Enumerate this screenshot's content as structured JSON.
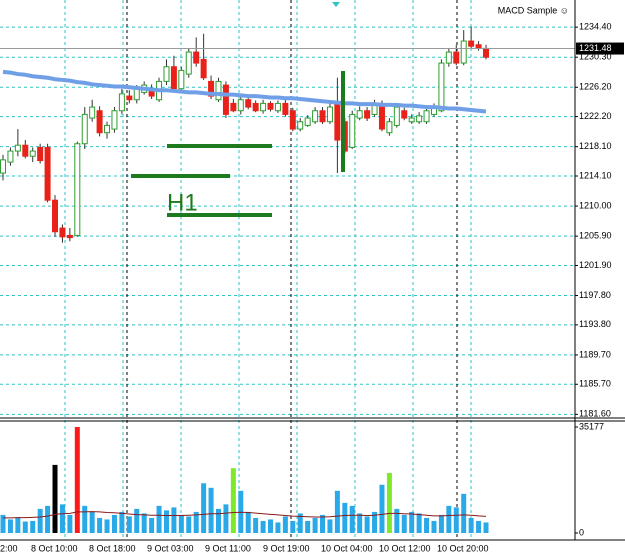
{
  "chart_data": {
    "type": "candlestick",
    "title": "MACD Sample ☺",
    "annotation": "H1",
    "open": [
      1214.5,
      1216,
      1217.5,
      1218.3,
      1216.8,
      1218,
      1218,
      1210.8,
      1207,
      1206,
      1206,
      1218.5,
      1222,
      1223,
      1220,
      1220.5,
      1223,
      1225,
      1224.5,
      1225.5,
      1226,
      1224.5,
      1227,
      1229,
      1226,
      1228,
      1231,
      1230,
      1227,
      1224.5,
      1226.5,
      1224,
      1223,
      1224.5,
      1224,
      1223,
      1224,
      1223,
      1224,
      1223,
      1220.5,
      1221,
      1221.5,
      1223,
      1221.5,
      1224,
      1221.5,
      1218,
      1222,
      1223,
      1222.5,
      1224,
      1220,
      1221,
      1223,
      1221.5,
      1221.5,
      1221.5,
      1222.5,
      1223,
      1229.5,
      1231,
      1229.5,
      1232.5,
      1232,
      1231.5
    ],
    "high": [
      1217,
      1218,
      1220.5,
      1219,
      1218,
      1218.5,
      1218.5,
      1211.5,
      1207.5,
      1207,
      1218.8,
      1223.5,
      1224.5,
      1223.6,
      1221.5,
      1223.5,
      1226,
      1225.8,
      1226.5,
      1227,
      1226.6,
      1227.5,
      1230,
      1230.5,
      1229,
      1231.5,
      1233,
      1233.5,
      1227.8,
      1227.5,
      1227,
      1224.6,
      1225,
      1225,
      1224.4,
      1224.5,
      1224.3,
      1224.4,
      1224.5,
      1223.4,
      1222,
      1222.4,
      1223.5,
      1223.5,
      1224,
      1227.5,
      1222,
      1223,
      1223.6,
      1223.5,
      1224.5,
      1224.4,
      1222,
      1224,
      1223.4,
      1222.5,
      1222.8,
      1223.5,
      1224,
      1230,
      1231.5,
      1232,
      1234,
      1234.5,
      1232.5,
      1232
    ],
    "low": [
      1213.5,
      1215.5,
      1216.8,
      1216.5,
      1216,
      1215.8,
      1210.5,
      1205.8,
      1205,
      1205.2,
      1205.8,
      1217.8,
      1221.5,
      1219.5,
      1219.2,
      1220,
      1222.5,
      1224,
      1224,
      1225.2,
      1224.6,
      1224.2,
      1226.5,
      1225.8,
      1225.5,
      1227.5,
      1229,
      1227.2,
      1224.6,
      1224.2,
      1222,
      1222.8,
      1222.5,
      1223.2,
      1222.8,
      1222.6,
      1222.9,
      1222.7,
      1222.2,
      1220.2,
      1220.2,
      1220.8,
      1221.2,
      1221.2,
      1221.2,
      1214.5,
      1217.2,
      1217.8,
      1221.7,
      1221.6,
      1222.2,
      1220.2,
      1219.6,
      1220.7,
      1221.7,
      1221.2,
      1221.2,
      1221.2,
      1222.2,
      1222.8,
      1229,
      1229.2,
      1229.2,
      1231.5,
      1231.2,
      1230
    ],
    "close": [
      1216.3,
      1217.5,
      1218.3,
      1216.8,
      1217.5,
      1216.2,
      1210.8,
      1206.5,
      1205.8,
      1205.7,
      1218.5,
      1222.5,
      1223.5,
      1220,
      1221,
      1223,
      1225.3,
      1224.5,
      1226,
      1226.5,
      1225,
      1227,
      1229,
      1226,
      1228.5,
      1231,
      1229.5,
      1227.5,
      1225,
      1227,
      1222.5,
      1223,
      1224.5,
      1223.5,
      1223,
      1224,
      1223.2,
      1224,
      1222.5,
      1220.5,
      1221.5,
      1222,
      1223,
      1221.5,
      1223.5,
      1219,
      1217.5,
      1222.5,
      1223,
      1222,
      1223.8,
      1220.5,
      1221.5,
      1223.5,
      1222,
      1222,
      1222.3,
      1223,
      1223.5,
      1229.5,
      1231,
      1229.5,
      1232.5,
      1231.8,
      1231.5,
      1230.3
    ],
    "up_color": "#ffffff",
    "up_edge": "#2e9e2e",
    "down_color": "#e8221a",
    "wick_color": "#333333",
    "ma": {
      "color": "#6f9fe6",
      "values": [
        1228.3,
        1228.2,
        1228.0,
        1227.9,
        1227.7,
        1227.6,
        1227.5,
        1227.3,
        1227.2,
        1227.1,
        1226.9,
        1226.8,
        1226.6,
        1226.5,
        1226.4,
        1226.3,
        1226.3,
        1226.2,
        1226.1,
        1226.0,
        1225.9,
        1225.8,
        1225.8,
        1225.7,
        1225.6,
        1225.5,
        1225.5,
        1225.4,
        1225.3,
        1225.3,
        1225.2,
        1225.2,
        1225.1,
        1225.0,
        1225.0,
        1224.9,
        1224.8,
        1224.8,
        1224.7,
        1224.7,
        1224.6,
        1224.5,
        1224.4,
        1224.3,
        1224.2,
        1224.1,
        1224.0,
        1224.0,
        1223.9,
        1223.9,
        1223.9,
        1223.8,
        1223.8,
        1223.8,
        1223.7,
        1223.7,
        1223.6,
        1223.5,
        1223.5,
        1223.4,
        1223.3,
        1223.3,
        1223.2,
        1223.1,
        1223.0,
        1222.9
      ]
    },
    "ylim": [
      1181.1,
      1238.1
    ],
    "yticks": [
      {
        "value": 1234.4,
        "label": "1234.40"
      },
      {
        "value": 1230.3,
        "label": "1230.30"
      },
      {
        "value": 1226.2,
        "label": "1226.20"
      },
      {
        "value": 1222.2,
        "label": "1222.20"
      },
      {
        "value": 1218.1,
        "label": "1218.10"
      },
      {
        "value": 1214.1,
        "label": "1214.10"
      },
      {
        "value": 1210.0,
        "label": "1210.00"
      },
      {
        "value": 1205.9,
        "label": "1205.90"
      },
      {
        "value": 1201.9,
        "label": "1201.90"
      },
      {
        "value": 1197.8,
        "label": "1197.80"
      },
      {
        "value": 1193.8,
        "label": "1193.80"
      },
      {
        "value": 1189.7,
        "label": "1189.70"
      },
      {
        "value": 1185.7,
        "label": "1185.70"
      },
      {
        "value": 1181.6,
        "label": "1181.60"
      }
    ],
    "bid": 1231.48,
    "grid": true,
    "grid_color": "#2ec4c4",
    "xlabels": [
      "2:00",
      "8 Oct 10:00",
      "8 Oct 18:00",
      "9 Oct 03:00",
      "9 Oct 11:00",
      "9 Oct 19:00",
      "10 Oct 04:00",
      "10 Oct 12:00",
      "10 Oct 20:00"
    ],
    "volume": {
      "values": [
        6000,
        4500,
        5200,
        3800,
        4000,
        8000,
        9000,
        22600,
        9500,
        6000,
        35177,
        9000,
        7000,
        5000,
        4500,
        6000,
        7000,
        5500,
        8000,
        6500,
        5000,
        9000,
        7500,
        8500,
        6000,
        5500,
        7000,
        16500,
        15000,
        8000,
        9500,
        21500,
        14000,
        7000,
        5000,
        4000,
        4500,
        3500,
        5500,
        4000,
        6500,
        4000,
        5000,
        6000,
        4500,
        14000,
        10000,
        9000,
        6500,
        5500,
        7000,
        16000,
        19900,
        8000,
        6000,
        7000,
        6500,
        5000,
        4000,
        6000,
        9000,
        8500,
        13000,
        5000,
        4000,
        3500
      ],
      "colors": [
        "#29a9e8",
        "#29a9e8",
        "#29a9e8",
        "#29a9e8",
        "#29a9e8",
        "#29a9e8",
        "#29a9e8",
        "#000000",
        "#29a9e8",
        "#29a9e8",
        "#ff1a1a",
        "#29a9e8",
        "#29a9e8",
        "#29a9e8",
        "#29a9e8",
        "#29a9e8",
        "#29a9e8",
        "#29a9e8",
        "#29a9e8",
        "#29a9e8",
        "#29a9e8",
        "#29a9e8",
        "#29a9e8",
        "#29a9e8",
        "#29a9e8",
        "#29a9e8",
        "#29a9e8",
        "#29a9e8",
        "#29a9e8",
        "#29a9e8",
        "#29a9e8",
        "#7fe82a",
        "#29a9e8",
        "#29a9e8",
        "#29a9e8",
        "#29a9e8",
        "#29a9e8",
        "#29a9e8",
        "#29a9e8",
        "#29a9e8",
        "#29a9e8",
        "#29a9e8",
        "#29a9e8",
        "#29a9e8",
        "#29a9e8",
        "#29a9e8",
        "#29a9e8",
        "#29a9e8",
        "#29a9e8",
        "#29a9e8",
        "#29a9e8",
        "#29a9e8",
        "#7fe82a",
        "#29a9e8",
        "#29a9e8",
        "#29a9e8",
        "#29a9e8",
        "#29a9e8",
        "#29a9e8",
        "#29a9e8",
        "#29a9e8",
        "#29a9e8",
        "#29a9e8",
        "#29a9e8",
        "#29a9e8",
        "#29a9e8"
      ],
      "ma": [
        5000,
        5000,
        5100,
        5100,
        5200,
        5300,
        5600,
        6200,
        6400,
        6500,
        7000,
        7000,
        7100,
        7000,
        6800,
        6700,
        6500,
        6300,
        6100,
        6000,
        5900,
        5900,
        5800,
        5800,
        5800,
        5900,
        6000,
        6200,
        6400,
        6400,
        6600,
        6800,
        6900,
        6800,
        6600,
        6400,
        6200,
        6000,
        5800,
        5600,
        5500,
        5400,
        5300,
        5300,
        5400,
        5600,
        5800,
        5900,
        5900,
        5800,
        5900,
        6200,
        6500,
        6500,
        6400,
        6300,
        6100,
        5900,
        5700,
        5700,
        5800,
        5900,
        6000,
        5900,
        5700,
        5500
      ],
      "ma_color": "#8b1a1a",
      "ylim": [
        -2323,
        37168
      ],
      "yticks": [
        35177,
        0
      ]
    }
  }
}
